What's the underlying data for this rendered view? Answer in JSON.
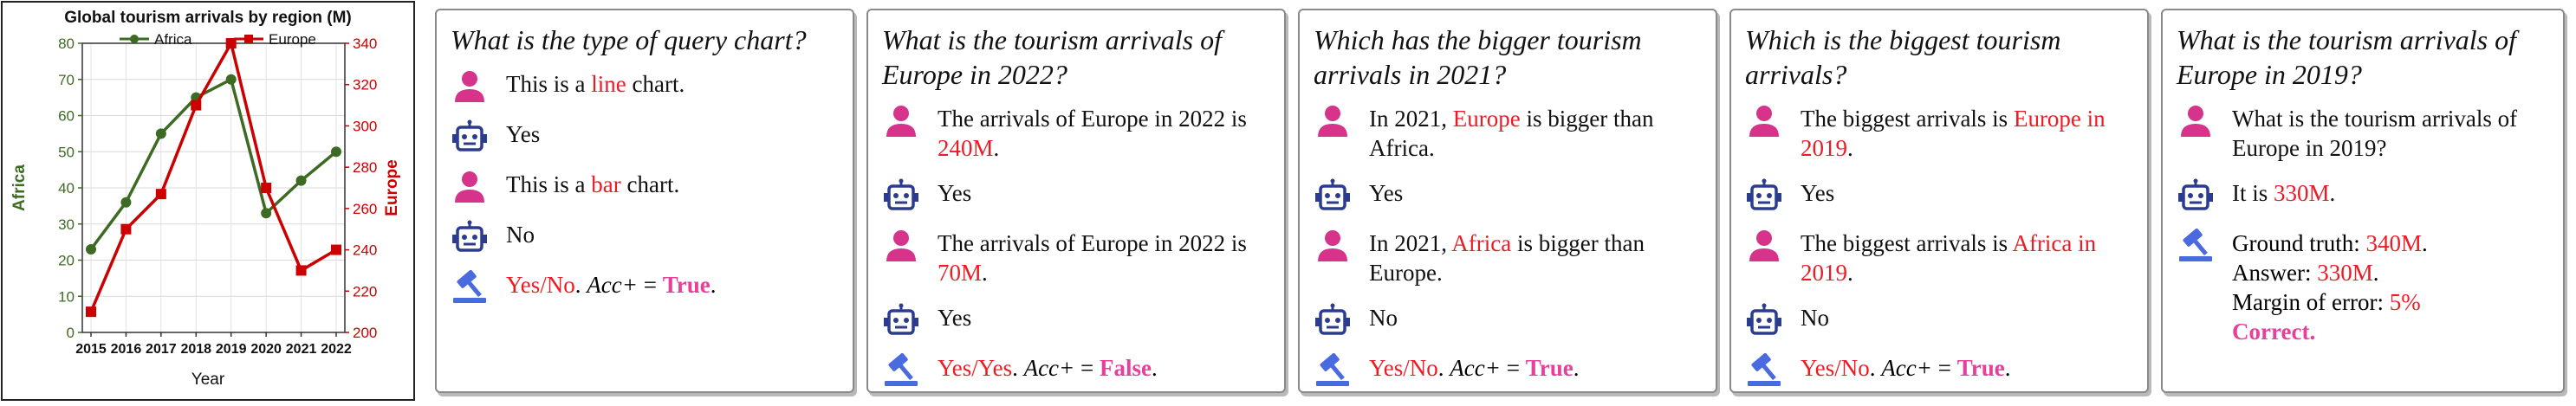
{
  "chart_data": {
    "type": "line",
    "title": "Global tourism arrivals by region (M)",
    "xlabel": "Year",
    "ylabel_left": "Africa",
    "ylabel_right": "Europe",
    "categories": [
      "2015",
      "2016",
      "2017",
      "2018",
      "2019",
      "2020",
      "2021",
      "2022"
    ],
    "ylim_left": [
      0,
      80
    ],
    "ylim_right": [
      200,
      340
    ],
    "left_ticks": [
      "0",
      "10",
      "20",
      "30",
      "40",
      "50",
      "60",
      "70",
      "80"
    ],
    "right_ticks": [
      "200",
      "220",
      "240",
      "260",
      "280",
      "300",
      "320",
      "340"
    ],
    "series": [
      {
        "name": "Africa",
        "axis": "left",
        "color": "#3d6b23",
        "marker": "circle",
        "values": [
          23,
          36,
          55,
          65,
          70,
          33,
          42,
          50
        ]
      },
      {
        "name": "Europe",
        "axis": "right",
        "color": "#cc0000",
        "marker": "square",
        "values": [
          210,
          250,
          267,
          310,
          340,
          270,
          230,
          240
        ]
      }
    ],
    "grid": true,
    "legend": "top"
  },
  "colors": {
    "red": "#ee1b24",
    "pink": "#e8409a",
    "user_icon": "#d6338a",
    "bot_icon": "#2b3c8f",
    "judge_icon": "#4a6be0"
  },
  "panels": [
    {
      "question": "What is the type of query chart?",
      "turns": [
        {
          "role": "user",
          "parts": [
            {
              "t": "This is a "
            },
            {
              "t": "line",
              "c": "red"
            },
            {
              "t": " chart."
            }
          ]
        },
        {
          "role": "bot",
          "parts": [
            {
              "t": "Yes"
            }
          ]
        },
        {
          "role": "user",
          "parts": [
            {
              "t": "This is a "
            },
            {
              "t": "bar",
              "c": "red"
            },
            {
              "t": " chart."
            }
          ]
        },
        {
          "role": "bot",
          "parts": [
            {
              "t": "No"
            }
          ]
        }
      ],
      "verdict": [
        {
          "t": "Yes/No",
          "c": "red"
        },
        {
          "t": ".  "
        },
        {
          "t": "Acc+",
          "c": "it"
        },
        {
          "t": " = "
        },
        {
          "t": "True",
          "c": "pink"
        },
        {
          "t": "."
        }
      ]
    },
    {
      "question": "What is the tourism arrivals of Europe in 2022?",
      "turns": [
        {
          "role": "user",
          "parts": [
            {
              "t": "The arrivals of Europe in 2022 is "
            },
            {
              "t": "240M",
              "c": "red"
            },
            {
              "t": "."
            }
          ]
        },
        {
          "role": "bot",
          "parts": [
            {
              "t": "Yes"
            }
          ]
        },
        {
          "role": "user",
          "parts": [
            {
              "t": "The arrivals of Europe in 2022 is "
            },
            {
              "t": "70M",
              "c": "red"
            },
            {
              "t": "."
            }
          ]
        },
        {
          "role": "bot",
          "parts": [
            {
              "t": "Yes"
            }
          ]
        }
      ],
      "verdict": [
        {
          "t": "Yes/Yes",
          "c": "red"
        },
        {
          "t": ".  "
        },
        {
          "t": "Acc+",
          "c": "it"
        },
        {
          "t": " = "
        },
        {
          "t": "False",
          "c": "pink"
        },
        {
          "t": "."
        }
      ]
    },
    {
      "question": "Which has the bigger tourism arrivals in 2021?",
      "turns": [
        {
          "role": "user",
          "parts": [
            {
              "t": "In 2021, "
            },
            {
              "t": "Europe",
              "c": "red"
            },
            {
              "t": " is bigger than Africa."
            }
          ]
        },
        {
          "role": "bot",
          "parts": [
            {
              "t": "Yes"
            }
          ]
        },
        {
          "role": "user",
          "parts": [
            {
              "t": "In 2021, "
            },
            {
              "t": "Africa",
              "c": "red"
            },
            {
              "t": " is bigger than Europe."
            }
          ]
        },
        {
          "role": "bot",
          "parts": [
            {
              "t": "No"
            }
          ]
        }
      ],
      "verdict": [
        {
          "t": "Yes/No",
          "c": "red"
        },
        {
          "t": ".  "
        },
        {
          "t": "Acc+",
          "c": "it"
        },
        {
          "t": " = "
        },
        {
          "t": "True",
          "c": "pink"
        },
        {
          "t": "."
        }
      ]
    },
    {
      "question": "Which is the biggest tourism arrivals?",
      "turns": [
        {
          "role": "user",
          "parts": [
            {
              "t": "The biggest arrivals is "
            },
            {
              "t": "Europe in 2019",
              "c": "red"
            },
            {
              "t": "."
            }
          ]
        },
        {
          "role": "bot",
          "parts": [
            {
              "t": "Yes"
            }
          ]
        },
        {
          "role": "user",
          "parts": [
            {
              "t": "The biggest arrivals is "
            },
            {
              "t": "Africa in 2019",
              "c": "red"
            },
            {
              "t": "."
            }
          ]
        },
        {
          "role": "bot",
          "parts": [
            {
              "t": "No"
            }
          ]
        }
      ],
      "verdict": [
        {
          "t": "Yes/No",
          "c": "red"
        },
        {
          "t": ".  "
        },
        {
          "t": "Acc+",
          "c": "it"
        },
        {
          "t": " = "
        },
        {
          "t": "True",
          "c": "pink"
        },
        {
          "t": "."
        }
      ]
    },
    {
      "question": "What is the tourism arrivals of Europe in 2019?",
      "turns": [
        {
          "role": "user",
          "parts": [
            {
              "t": "What is the tourism arrivals of Europe in 2019?"
            }
          ]
        },
        {
          "role": "bot",
          "parts": [
            {
              "t": "It is "
            },
            {
              "t": "330M",
              "c": "red"
            },
            {
              "t": "."
            }
          ]
        }
      ],
      "verdict_lines": [
        [
          {
            "t": "Ground truth: "
          },
          {
            "t": "340M",
            "c": "red"
          },
          {
            "t": "."
          }
        ],
        [
          {
            "t": "Answer: "
          },
          {
            "t": "330M",
            "c": "red"
          },
          {
            "t": "."
          }
        ],
        [
          {
            "t": "Margin of error: "
          },
          {
            "t": "5%",
            "c": "red"
          }
        ],
        [
          {
            "t": "Correct.",
            "c": "pink"
          }
        ]
      ]
    }
  ]
}
